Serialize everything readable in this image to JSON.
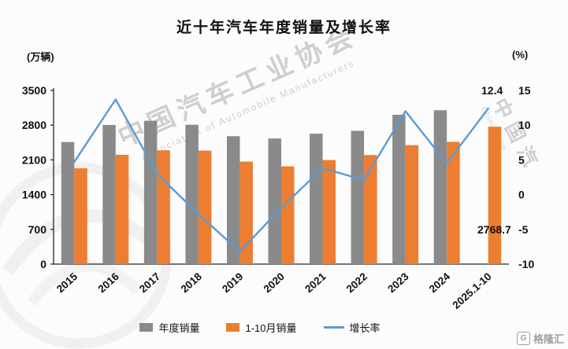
{
  "title": "近十年汽车年度销量及增长率",
  "left_axis_unit": "(万辆)",
  "right_axis_unit": "(%)",
  "left_ticks": [
    3500,
    2800,
    2100,
    1400,
    700,
    0
  ],
  "right_ticks": [
    15,
    10,
    5,
    0,
    -5,
    -10
  ],
  "annotations": {
    "growth_label": "12.4",
    "sales_label": "2768.7"
  },
  "legend": [
    {
      "label": "年度销量",
      "type": "bar",
      "color": "#8a8a8a"
    },
    {
      "label": "1-10月销量",
      "type": "bar",
      "color": "#ED7D31"
    },
    {
      "label": "增长率",
      "type": "line",
      "color": "#5B9BD5"
    }
  ],
  "watermark": {
    "main": "中国汽车工业协会",
    "main_sub": "Association of Automobile Manufacturers",
    "side": "中国汽",
    "side_sub": "China Asso"
  },
  "footer_logo": {
    "glyph": "G",
    "label": "格隆汇"
  },
  "chart_data": {
    "type": "combo",
    "categories": [
      "2015",
      "2016",
      "2017",
      "2018",
      "2019",
      "2020",
      "2021",
      "2022",
      "2023",
      "2024",
      "2025.1-10"
    ],
    "series": [
      {
        "name": "年度销量",
        "key": "annual-sales",
        "type": "bar",
        "axis": "left",
        "color": "#8a8a8a",
        "values": [
          2460,
          2803,
          2888,
          2808,
          2577,
          2531,
          2628,
          2686,
          3009,
          3100,
          null
        ]
      },
      {
        "name": "1-10月销量",
        "key": "ytd-sales",
        "type": "bar",
        "axis": "left",
        "color": "#ED7D31",
        "values": [
          1930,
          2202,
          2293,
          2287,
          2065,
          1970,
          2097,
          2197,
          2397,
          2462,
          2768.7
        ]
      },
      {
        "name": "增长率",
        "key": "growth-rate",
        "type": "line",
        "axis": "right",
        "color": "#5B9BD5",
        "values": [
          4.7,
          13.7,
          3.0,
          -2.8,
          -8.2,
          -1.9,
          3.8,
          2.1,
          12.0,
          4.5,
          12.4
        ]
      }
    ],
    "left_axis": {
      "label": "(万辆)",
      "min": 0,
      "max": 3500
    },
    "right_axis": {
      "label": "(%)",
      "min": -10,
      "max": 15
    },
    "grid": false,
    "legend_position": "bottom"
  }
}
